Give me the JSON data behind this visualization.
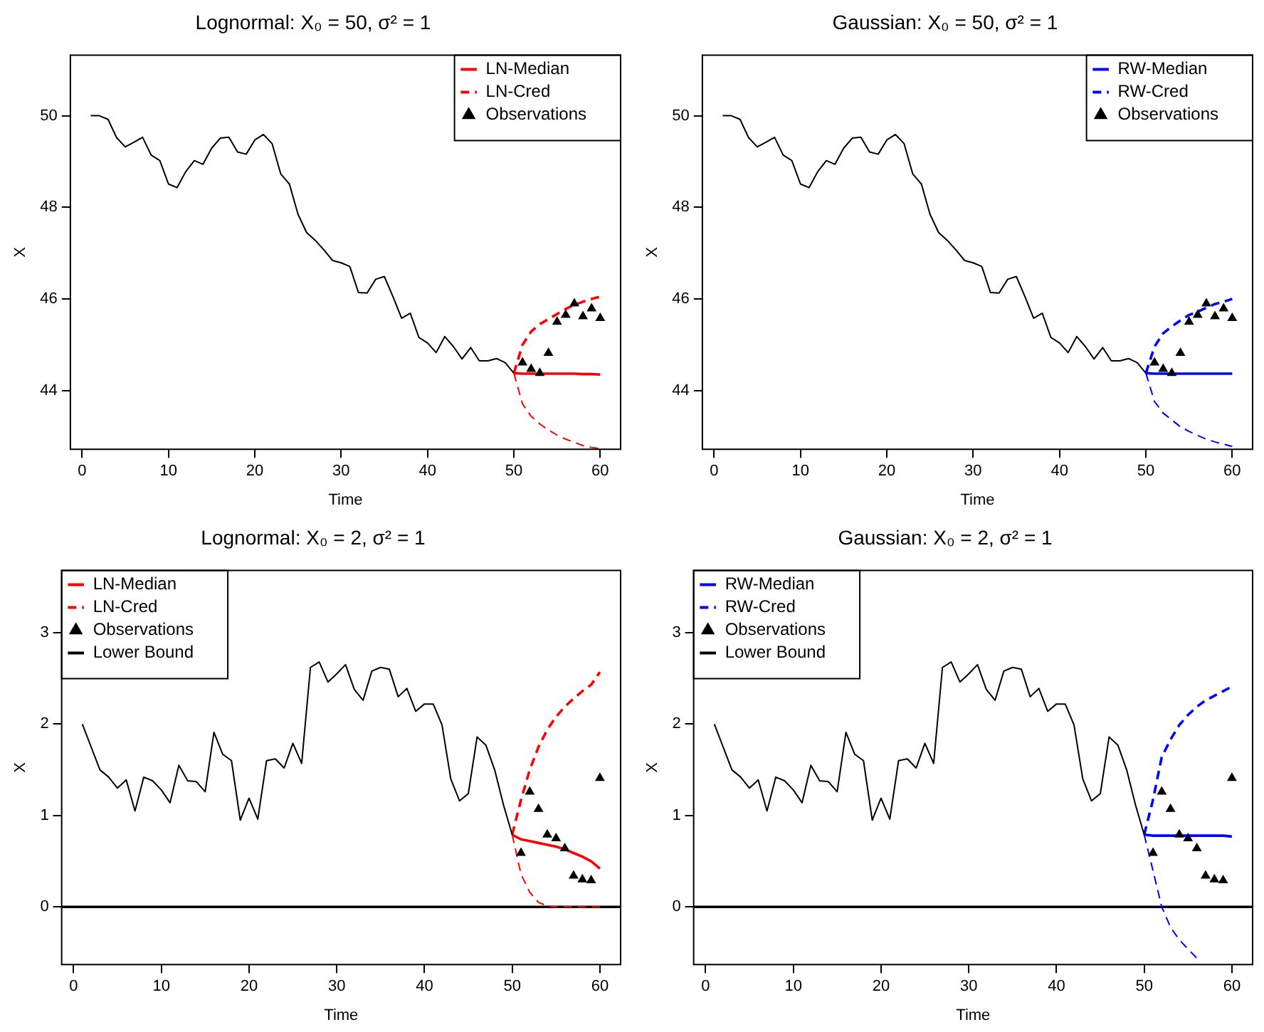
{
  "chart_data": [
    {
      "type": "line",
      "title": "Lognormal: X₀ = 50, σ² = 1",
      "xlabel": "Time",
      "ylabel": "X",
      "xlim": [
        -1.36,
        62.36
      ],
      "xticks": [
        0,
        10,
        20,
        30,
        40,
        50,
        60
      ],
      "ylim": [
        42.72,
        51.32
      ],
      "yticks": [
        44,
        46,
        48,
        50
      ],
      "legend": "top right",
      "series": [
        {
          "type": "line",
          "color": "#000000",
          "line_style": "solid",
          "x": [
            1,
            2,
            3,
            4,
            5,
            6,
            7,
            8,
            9,
            10,
            11,
            12,
            13,
            14,
            15,
            16,
            17,
            18,
            19,
            20,
            21,
            22,
            23,
            24,
            25,
            26,
            27,
            28,
            29,
            30,
            31,
            32,
            33,
            34,
            35,
            36,
            37,
            38,
            39,
            40,
            41,
            42,
            43,
            44,
            45,
            46,
            47,
            48,
            49,
            50
          ],
          "values": [
            50.0,
            50.0,
            49.92,
            49.52,
            49.32,
            49.42,
            49.53,
            49.14,
            49.02,
            48.51,
            48.43,
            48.78,
            49.02,
            48.94,
            49.29,
            49.51,
            49.53,
            49.21,
            49.16,
            49.47,
            49.59,
            49.39,
            48.73,
            48.51,
            47.85,
            47.45,
            47.28,
            47.07,
            46.84,
            46.79,
            46.71,
            46.14,
            46.13,
            46.43,
            46.49,
            46.05,
            45.58,
            45.69,
            45.16,
            45.04,
            44.83,
            45.18,
            44.96,
            44.69,
            44.94,
            44.65,
            44.65,
            44.7,
            44.61,
            44.38
          ]
        },
        {
          "type": "line",
          "name": "LN-Median",
          "color": "#ff0000",
          "line_style": "solid",
          "x": [
            50,
            51,
            52,
            53,
            54,
            55,
            56,
            57,
            58,
            59,
            60
          ],
          "values": [
            44.38,
            44.37,
            44.37,
            44.37,
            44.37,
            44.37,
            44.37,
            44.37,
            44.36,
            44.36,
            44.35
          ]
        },
        {
          "type": "line",
          "name": "LN-Cred",
          "color": "#ff0000",
          "line_style": "dashed",
          "x": [
            50,
            51,
            52,
            53,
            54,
            55,
            56,
            57,
            58,
            59,
            60
          ],
          "values": [
            44.38,
            45.0,
            45.29,
            45.45,
            45.56,
            45.67,
            45.78,
            45.87,
            45.94,
            46.0,
            46.05
          ]
        },
        {
          "type": "line",
          "color": "#ff0000",
          "line_style": "dashed",
          "x": [
            50,
            51,
            52,
            53,
            54,
            55,
            56,
            57,
            58,
            59,
            60
          ],
          "values": [
            44.38,
            43.71,
            43.44,
            43.27,
            43.14,
            43.03,
            42.94,
            42.87,
            42.8,
            42.76,
            42.73
          ]
        },
        {
          "type": "scatter",
          "name": "Observations",
          "color": "#000000",
          "marker": "triangle",
          "x": [
            51,
            52,
            53,
            54,
            55,
            56,
            57,
            58,
            59,
            60
          ],
          "values": [
            44.61,
            44.47,
            44.38,
            44.82,
            45.5,
            45.65,
            45.9,
            45.62,
            45.79,
            45.58
          ]
        }
      ]
    },
    {
      "type": "line",
      "title": "Gaussian: X₀ = 50, σ² = 1",
      "xlabel": "Time",
      "ylabel": "X",
      "xlim": [
        -1.36,
        62.36
      ],
      "xticks": [
        0,
        10,
        20,
        30,
        40,
        50,
        60
      ],
      "ylim": [
        42.72,
        51.32
      ],
      "yticks": [
        44,
        46,
        48,
        50
      ],
      "legend": "top right",
      "series": [
        {
          "type": "line",
          "color": "#000000",
          "line_style": "solid",
          "x": [
            1,
            2,
            3,
            4,
            5,
            6,
            7,
            8,
            9,
            10,
            11,
            12,
            13,
            14,
            15,
            16,
            17,
            18,
            19,
            20,
            21,
            22,
            23,
            24,
            25,
            26,
            27,
            28,
            29,
            30,
            31,
            32,
            33,
            34,
            35,
            36,
            37,
            38,
            39,
            40,
            41,
            42,
            43,
            44,
            45,
            46,
            47,
            48,
            49,
            50
          ],
          "values": [
            50.0,
            50.0,
            49.92,
            49.52,
            49.32,
            49.42,
            49.53,
            49.14,
            49.02,
            48.51,
            48.43,
            48.78,
            49.02,
            48.94,
            49.29,
            49.51,
            49.53,
            49.21,
            49.16,
            49.47,
            49.59,
            49.39,
            48.73,
            48.51,
            47.85,
            47.45,
            47.28,
            47.07,
            46.84,
            46.79,
            46.71,
            46.14,
            46.13,
            46.43,
            46.49,
            46.05,
            45.58,
            45.69,
            45.16,
            45.04,
            44.83,
            45.18,
            44.96,
            44.69,
            44.94,
            44.65,
            44.65,
            44.7,
            44.61,
            44.38
          ]
        },
        {
          "type": "line",
          "name": "RW-Median",
          "color": "#0000ff",
          "line_style": "solid",
          "x": [
            50,
            51,
            52,
            53,
            54,
            55,
            56,
            57,
            58,
            59,
            60
          ],
          "values": [
            44.38,
            44.37,
            44.37,
            44.37,
            44.37,
            44.37,
            44.37,
            44.37,
            44.37,
            44.37,
            44.37
          ]
        },
        {
          "type": "line",
          "name": "RW-Cred",
          "color": "#0000ff",
          "line_style": "dashed",
          "x": [
            50,
            51,
            52,
            53,
            54,
            55,
            56,
            57,
            58,
            59,
            60
          ],
          "values": [
            44.38,
            44.96,
            45.25,
            45.4,
            45.53,
            45.65,
            45.72,
            45.81,
            45.89,
            45.94,
            46.0
          ]
        },
        {
          "type": "line",
          "color": "#0000ff",
          "line_style": "dashed",
          "x": [
            50,
            51,
            52,
            53,
            54,
            55,
            56,
            57,
            58,
            59,
            60
          ],
          "values": [
            44.38,
            43.76,
            43.51,
            43.36,
            43.21,
            43.11,
            43.02,
            42.94,
            42.88,
            42.83,
            42.78
          ]
        },
        {
          "type": "scatter",
          "name": "Observations",
          "color": "#000000",
          "marker": "triangle",
          "x": [
            51,
            52,
            53,
            54,
            55,
            56,
            57,
            58,
            59,
            60
          ],
          "values": [
            44.61,
            44.47,
            44.38,
            44.82,
            45.5,
            45.65,
            45.9,
            45.62,
            45.79,
            45.58
          ]
        }
      ]
    },
    {
      "type": "line",
      "title": "Lognormal: X₀ = 2, σ² = 1",
      "xlabel": "Time",
      "ylabel": "X",
      "xlim": [
        -1.36,
        62.36
      ],
      "xticks": [
        0,
        10,
        20,
        30,
        40,
        50,
        60
      ],
      "ylim": [
        -0.63,
        3.68
      ],
      "yticks": [
        0,
        1,
        2,
        3
      ],
      "legend": "top left",
      "series": [
        {
          "type": "line",
          "color": "#000000",
          "line_style": "solid",
          "x": [
            1,
            2,
            3,
            4,
            5,
            6,
            7,
            8,
            9,
            10,
            11,
            12,
            13,
            14,
            15,
            16,
            17,
            18,
            19,
            20,
            21,
            22,
            23,
            24,
            25,
            26,
            27,
            28,
            29,
            30,
            31,
            32,
            33,
            34,
            35,
            36,
            37,
            38,
            39,
            40,
            41,
            42,
            43,
            44,
            45,
            46,
            47,
            48,
            49,
            50
          ],
          "values": [
            2.0,
            1.75,
            1.5,
            1.42,
            1.3,
            1.39,
            1.05,
            1.42,
            1.38,
            1.28,
            1.14,
            1.55,
            1.38,
            1.37,
            1.26,
            1.91,
            1.67,
            1.6,
            0.95,
            1.19,
            0.96,
            1.6,
            1.62,
            1.52,
            1.79,
            1.57,
            2.62,
            2.68,
            2.46,
            2.55,
            2.65,
            2.38,
            2.26,
            2.58,
            2.62,
            2.6,
            2.3,
            2.39,
            2.14,
            2.22,
            2.22,
            1.99,
            1.4,
            1.16,
            1.24,
            1.86,
            1.77,
            1.5,
            1.12,
            0.79
          ]
        },
        {
          "type": "line",
          "name": "LN-Median",
          "color": "#ff0000",
          "line_style": "solid",
          "x": [
            50,
            51,
            52,
            53,
            54,
            55,
            56,
            57,
            58,
            59,
            60
          ],
          "values": [
            0.79,
            0.74,
            0.72,
            0.7,
            0.68,
            0.66,
            0.63,
            0.59,
            0.55,
            0.5,
            0.42
          ]
        },
        {
          "type": "line",
          "name": "LN-Cred",
          "color": "#ff0000",
          "line_style": "dashed",
          "x": [
            50,
            51,
            52,
            53,
            54,
            55,
            56,
            57,
            58,
            59,
            60
          ],
          "values": [
            0.79,
            1.17,
            1.5,
            1.75,
            1.94,
            2.08,
            2.19,
            2.28,
            2.36,
            2.43,
            2.57
          ]
        },
        {
          "type": "line",
          "color": "#ff0000",
          "line_style": "dashed",
          "x": [
            50,
            51,
            52,
            53,
            54,
            55,
            56,
            57,
            58,
            59,
            60
          ],
          "values": [
            0.79,
            0.36,
            0.16,
            0.05,
            0.01,
            0,
            0,
            0,
            0,
            0,
            0
          ]
        },
        {
          "type": "scatter",
          "name": "Observations",
          "color": "#000000",
          "marker": "triangle",
          "x": [
            51,
            52,
            53,
            54,
            55,
            56,
            57,
            58,
            59,
            60
          ],
          "values": [
            0.59,
            1.26,
            1.07,
            0.79,
            0.75,
            0.64,
            0.34,
            0.3,
            0.29,
            1.41
          ]
        },
        {
          "type": "line",
          "name": "Lower Bound",
          "color": "#000000",
          "line_style": "solid",
          "x": [
            -1.36,
            62.36
          ],
          "values": [
            0,
            0
          ]
        }
      ]
    },
    {
      "type": "line",
      "title": "Gaussian: X₀ = 2, σ² = 1",
      "xlabel": "Time",
      "ylabel": "X",
      "xlim": [
        -1.36,
        62.36
      ],
      "xticks": [
        0,
        10,
        20,
        30,
        40,
        50,
        60
      ],
      "ylim": [
        -0.63,
        3.68
      ],
      "yticks": [
        0,
        1,
        2,
        3
      ],
      "legend": "top left",
      "series": [
        {
          "type": "line",
          "color": "#000000",
          "line_style": "solid",
          "x": [
            1,
            2,
            3,
            4,
            5,
            6,
            7,
            8,
            9,
            10,
            11,
            12,
            13,
            14,
            15,
            16,
            17,
            18,
            19,
            20,
            21,
            22,
            23,
            24,
            25,
            26,
            27,
            28,
            29,
            30,
            31,
            32,
            33,
            34,
            35,
            36,
            37,
            38,
            39,
            40,
            41,
            42,
            43,
            44,
            45,
            46,
            47,
            48,
            49,
            50
          ],
          "values": [
            2.0,
            1.75,
            1.5,
            1.42,
            1.3,
            1.39,
            1.05,
            1.42,
            1.38,
            1.28,
            1.14,
            1.55,
            1.38,
            1.37,
            1.26,
            1.91,
            1.67,
            1.6,
            0.95,
            1.19,
            0.96,
            1.6,
            1.62,
            1.52,
            1.79,
            1.57,
            2.62,
            2.68,
            2.46,
            2.55,
            2.65,
            2.38,
            2.26,
            2.58,
            2.62,
            2.6,
            2.3,
            2.39,
            2.14,
            2.22,
            2.22,
            1.99,
            1.4,
            1.16,
            1.24,
            1.86,
            1.77,
            1.5,
            1.12,
            0.79
          ]
        },
        {
          "type": "line",
          "name": "RW-Median",
          "color": "#0000ff",
          "line_style": "solid",
          "x": [
            50,
            51,
            52,
            53,
            54,
            55,
            56,
            57,
            58,
            59,
            60
          ],
          "values": [
            0.79,
            0.78,
            0.78,
            0.78,
            0.78,
            0.78,
            0.78,
            0.78,
            0.78,
            0.78,
            0.77
          ]
        },
        {
          "type": "line",
          "name": "RW-Cred",
          "color": "#0000ff",
          "line_style": "dashed",
          "x": [
            50,
            51,
            52,
            53,
            54,
            55,
            56,
            57,
            58,
            59,
            60
          ],
          "values": [
            0.79,
            1.17,
            1.64,
            1.83,
            1.99,
            2.1,
            2.19,
            2.26,
            2.31,
            2.36,
            2.41
          ]
        },
        {
          "type": "line",
          "color": "#0000ff",
          "line_style": "dashed",
          "x": [
            50,
            51,
            52,
            53,
            54,
            55,
            56
          ],
          "values": [
            0.79,
            0.4,
            0.0,
            -0.22,
            -0.36,
            -0.46,
            -0.56
          ]
        },
        {
          "type": "scatter",
          "name": "Observations",
          "color": "#000000",
          "marker": "triangle",
          "x": [
            51,
            52,
            53,
            54,
            55,
            56,
            57,
            58,
            59,
            60
          ],
          "values": [
            0.59,
            1.26,
            1.07,
            0.79,
            0.75,
            0.64,
            0.34,
            0.3,
            0.29,
            1.41
          ]
        },
        {
          "type": "line",
          "name": "Lower Bound",
          "color": "#000000",
          "line_style": "solid",
          "x": [
            -1.36,
            62.36
          ],
          "values": [
            0,
            0
          ]
        }
      ]
    }
  ]
}
